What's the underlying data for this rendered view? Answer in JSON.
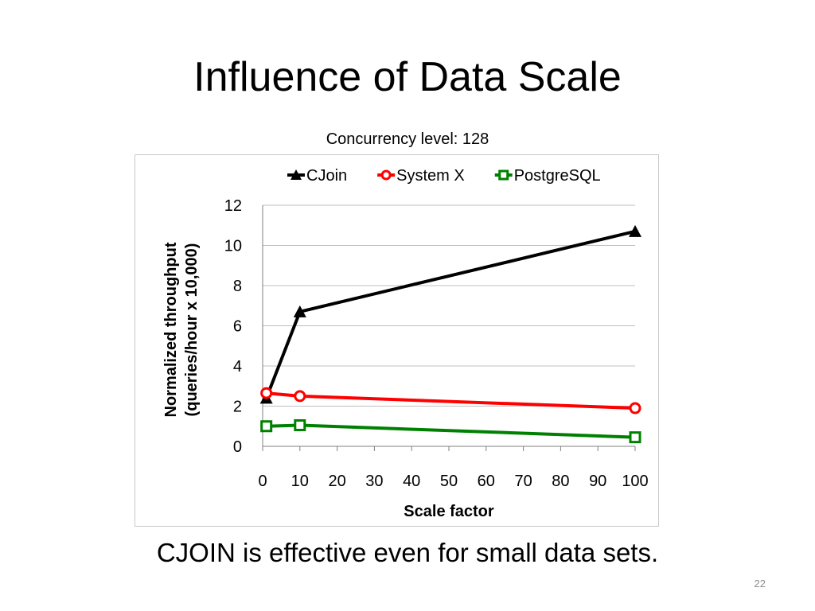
{
  "slide": {
    "title": "Influence of Data Scale",
    "footer": "CJOIN is effective even for small data sets.",
    "page_number": "22"
  },
  "chart_data": {
    "type": "line",
    "title": "Concurrency level: 128",
    "xlabel": "Scale factor",
    "ylabel_lines": [
      "Normalized throughput",
      "(queries/hour x 10,000)"
    ],
    "xlim": [
      0,
      100
    ],
    "ylim": [
      0,
      12
    ],
    "xticks": [
      0,
      10,
      20,
      30,
      40,
      50,
      60,
      70,
      80,
      90,
      100
    ],
    "yticks": [
      0,
      2,
      4,
      6,
      8,
      10,
      12
    ],
    "grid": "horizontal",
    "legend_position": "top",
    "series": [
      {
        "name": "CJoin",
        "color": "#000000",
        "marker": "triangle",
        "x": [
          1,
          10,
          100
        ],
        "y": [
          2.4,
          6.7,
          10.7
        ]
      },
      {
        "name": "System X",
        "color": "#ff0000",
        "marker": "circle",
        "x": [
          1,
          10,
          100
        ],
        "y": [
          2.65,
          2.5,
          1.9
        ]
      },
      {
        "name": "PostgreSQL",
        "color": "#008000",
        "marker": "square",
        "x": [
          1,
          10,
          100
        ],
        "y": [
          1.0,
          1.05,
          0.45
        ]
      }
    ]
  }
}
